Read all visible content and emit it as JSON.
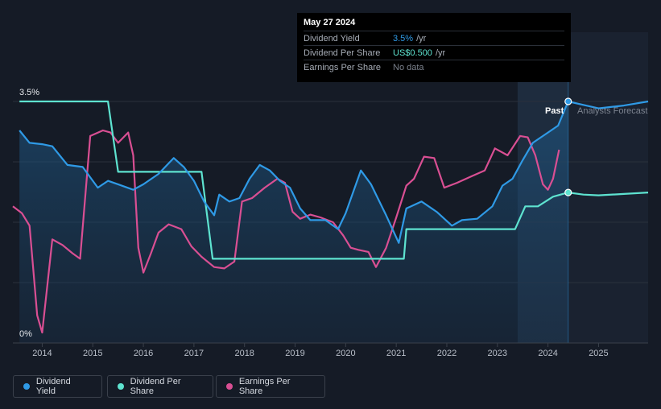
{
  "tooltip": {
    "date": "May 27 2024",
    "rows": [
      {
        "label": "Dividend Yield",
        "value": "3.5%",
        "unit": "/yr",
        "color": "#2f9ae6"
      },
      {
        "label": "Dividend Per Share",
        "value": "US$0.500",
        "unit": "/yr",
        "color": "#5ee3d0"
      },
      {
        "label": "Earnings Per Share",
        "value": "No data",
        "unit": "",
        "color": "#7b818c"
      }
    ]
  },
  "annotations": {
    "past": "Past",
    "forecast": "Analysts Forecast"
  },
  "legend": [
    {
      "label": "Dividend Yield",
      "color": "#2f9ae6"
    },
    {
      "label": "Dividend Per Share",
      "color": "#5ee3d0"
    },
    {
      "label": "Earnings Per Share",
      "color": "#d94f93"
    }
  ],
  "chart_data": {
    "type": "line",
    "title": "",
    "xlabel": "",
    "ylabel": "",
    "xlim": [
      2013.42,
      2025.98
    ],
    "ylim": [
      0,
      3.5
    ],
    "y_tick_labels": [
      {
        "value": 3.5,
        "label": "3.5%"
      },
      {
        "value": 0,
        "label": "0%"
      }
    ],
    "x_ticks": [
      {
        "value": 2014,
        "label": "2014"
      },
      {
        "value": 2015,
        "label": "2015"
      },
      {
        "value": 2016,
        "label": "2016"
      },
      {
        "value": 2017,
        "label": "2017"
      },
      {
        "value": 2018,
        "label": "2018"
      },
      {
        "value": 2019,
        "label": "2019"
      },
      {
        "value": 2020,
        "label": "2020"
      },
      {
        "value": 2021,
        "label": "2021"
      },
      {
        "value": 2022,
        "label": "2022"
      },
      {
        "value": 2023,
        "label": "2023"
      },
      {
        "value": 2024,
        "label": "2024"
      },
      {
        "value": 2025,
        "label": "2025"
      }
    ],
    "forecast_start": 2024.4,
    "shaded_from": 2023.4,
    "series": [
      {
        "name": "Dividend Yield",
        "color": "#2f9ae6",
        "points": [
          [
            2013.55,
            3.08
          ],
          [
            2013.75,
            2.9
          ],
          [
            2014.0,
            2.88
          ],
          [
            2014.2,
            2.85
          ],
          [
            2014.5,
            2.58
          ],
          [
            2014.8,
            2.55
          ],
          [
            2015.1,
            2.25
          ],
          [
            2015.3,
            2.35
          ],
          [
            2015.5,
            2.3
          ],
          [
            2015.8,
            2.22
          ],
          [
            2016.0,
            2.3
          ],
          [
            2016.3,
            2.45
          ],
          [
            2016.6,
            2.68
          ],
          [
            2016.8,
            2.55
          ],
          [
            2017.0,
            2.35
          ],
          [
            2017.2,
            2.05
          ],
          [
            2017.4,
            1.85
          ],
          [
            2017.5,
            2.15
          ],
          [
            2017.7,
            2.05
          ],
          [
            2017.9,
            2.1
          ],
          [
            2018.1,
            2.38
          ],
          [
            2018.3,
            2.58
          ],
          [
            2018.5,
            2.5
          ],
          [
            2018.7,
            2.35
          ],
          [
            2018.9,
            2.25
          ],
          [
            2019.1,
            1.95
          ],
          [
            2019.3,
            1.78
          ],
          [
            2019.6,
            1.78
          ],
          [
            2019.85,
            1.65
          ],
          [
            2020.0,
            1.88
          ],
          [
            2020.3,
            2.5
          ],
          [
            2020.5,
            2.3
          ],
          [
            2020.8,
            1.85
          ],
          [
            2021.05,
            1.45
          ],
          [
            2021.2,
            1.95
          ],
          [
            2021.5,
            2.05
          ],
          [
            2021.8,
            1.9
          ],
          [
            2022.1,
            1.7
          ],
          [
            2022.3,
            1.78
          ],
          [
            2022.6,
            1.8
          ],
          [
            2022.9,
            1.98
          ],
          [
            2023.1,
            2.28
          ],
          [
            2023.3,
            2.38
          ],
          [
            2023.5,
            2.65
          ],
          [
            2023.7,
            2.9
          ],
          [
            2024.0,
            3.05
          ],
          [
            2024.2,
            3.15
          ],
          [
            2024.4,
            3.5
          ],
          [
            2024.7,
            3.45
          ],
          [
            2025.0,
            3.4
          ],
          [
            2025.5,
            3.44
          ],
          [
            2025.98,
            3.5
          ]
        ]
      },
      {
        "name": "Dividend Per Share",
        "color": "#5ee3d0",
        "points": [
          [
            2013.55,
            3.5
          ],
          [
            2015.3,
            3.5
          ],
          [
            2015.5,
            2.48
          ],
          [
            2017.15,
            2.48
          ],
          [
            2017.37,
            1.22
          ],
          [
            2021.15,
            1.22
          ],
          [
            2021.2,
            1.65
          ],
          [
            2023.35,
            1.65
          ],
          [
            2023.55,
            1.98
          ],
          [
            2023.8,
            1.98
          ],
          [
            2024.1,
            2.12
          ],
          [
            2024.4,
            2.18
          ],
          [
            2024.7,
            2.15
          ],
          [
            2025.0,
            2.14
          ],
          [
            2025.5,
            2.16
          ],
          [
            2025.98,
            2.18
          ]
        ]
      },
      {
        "name": "Earnings Per Share",
        "color": "#d94f93",
        "points": [
          [
            2013.42,
            1.98
          ],
          [
            2013.6,
            1.88
          ],
          [
            2013.75,
            1.7
          ],
          [
            2013.9,
            0.4
          ],
          [
            2014.0,
            0.15
          ],
          [
            2014.2,
            1.5
          ],
          [
            2014.4,
            1.42
          ],
          [
            2014.6,
            1.3
          ],
          [
            2014.75,
            1.22
          ],
          [
            2014.95,
            3.0
          ],
          [
            2015.2,
            3.08
          ],
          [
            2015.35,
            3.05
          ],
          [
            2015.5,
            2.9
          ],
          [
            2015.7,
            3.05
          ],
          [
            2015.8,
            2.72
          ],
          [
            2015.9,
            1.38
          ],
          [
            2016.0,
            1.02
          ],
          [
            2016.15,
            1.3
          ],
          [
            2016.3,
            1.6
          ],
          [
            2016.5,
            1.72
          ],
          [
            2016.75,
            1.65
          ],
          [
            2016.95,
            1.4
          ],
          [
            2017.15,
            1.25
          ],
          [
            2017.4,
            1.1
          ],
          [
            2017.6,
            1.08
          ],
          [
            2017.8,
            1.18
          ],
          [
            2017.95,
            2.05
          ],
          [
            2018.15,
            2.1
          ],
          [
            2018.4,
            2.25
          ],
          [
            2018.65,
            2.38
          ],
          [
            2018.8,
            2.32
          ],
          [
            2018.95,
            1.9
          ],
          [
            2019.1,
            1.8
          ],
          [
            2019.3,
            1.86
          ],
          [
            2019.5,
            1.82
          ],
          [
            2019.75,
            1.75
          ],
          [
            2019.95,
            1.56
          ],
          [
            2020.1,
            1.38
          ],
          [
            2020.25,
            1.35
          ],
          [
            2020.45,
            1.32
          ],
          [
            2020.6,
            1.1
          ],
          [
            2020.8,
            1.38
          ],
          [
            2021.0,
            1.82
          ],
          [
            2021.2,
            2.28
          ],
          [
            2021.35,
            2.38
          ],
          [
            2021.55,
            2.7
          ],
          [
            2021.75,
            2.68
          ],
          [
            2021.95,
            2.25
          ],
          [
            2022.2,
            2.32
          ],
          [
            2022.5,
            2.42
          ],
          [
            2022.75,
            2.5
          ],
          [
            2022.95,
            2.82
          ],
          [
            2023.2,
            2.72
          ],
          [
            2023.45,
            3.0
          ],
          [
            2023.6,
            2.98
          ],
          [
            2023.75,
            2.72
          ],
          [
            2023.9,
            2.3
          ],
          [
            2024.0,
            2.22
          ],
          [
            2024.1,
            2.38
          ],
          [
            2024.22,
            2.8
          ]
        ]
      }
    ]
  }
}
